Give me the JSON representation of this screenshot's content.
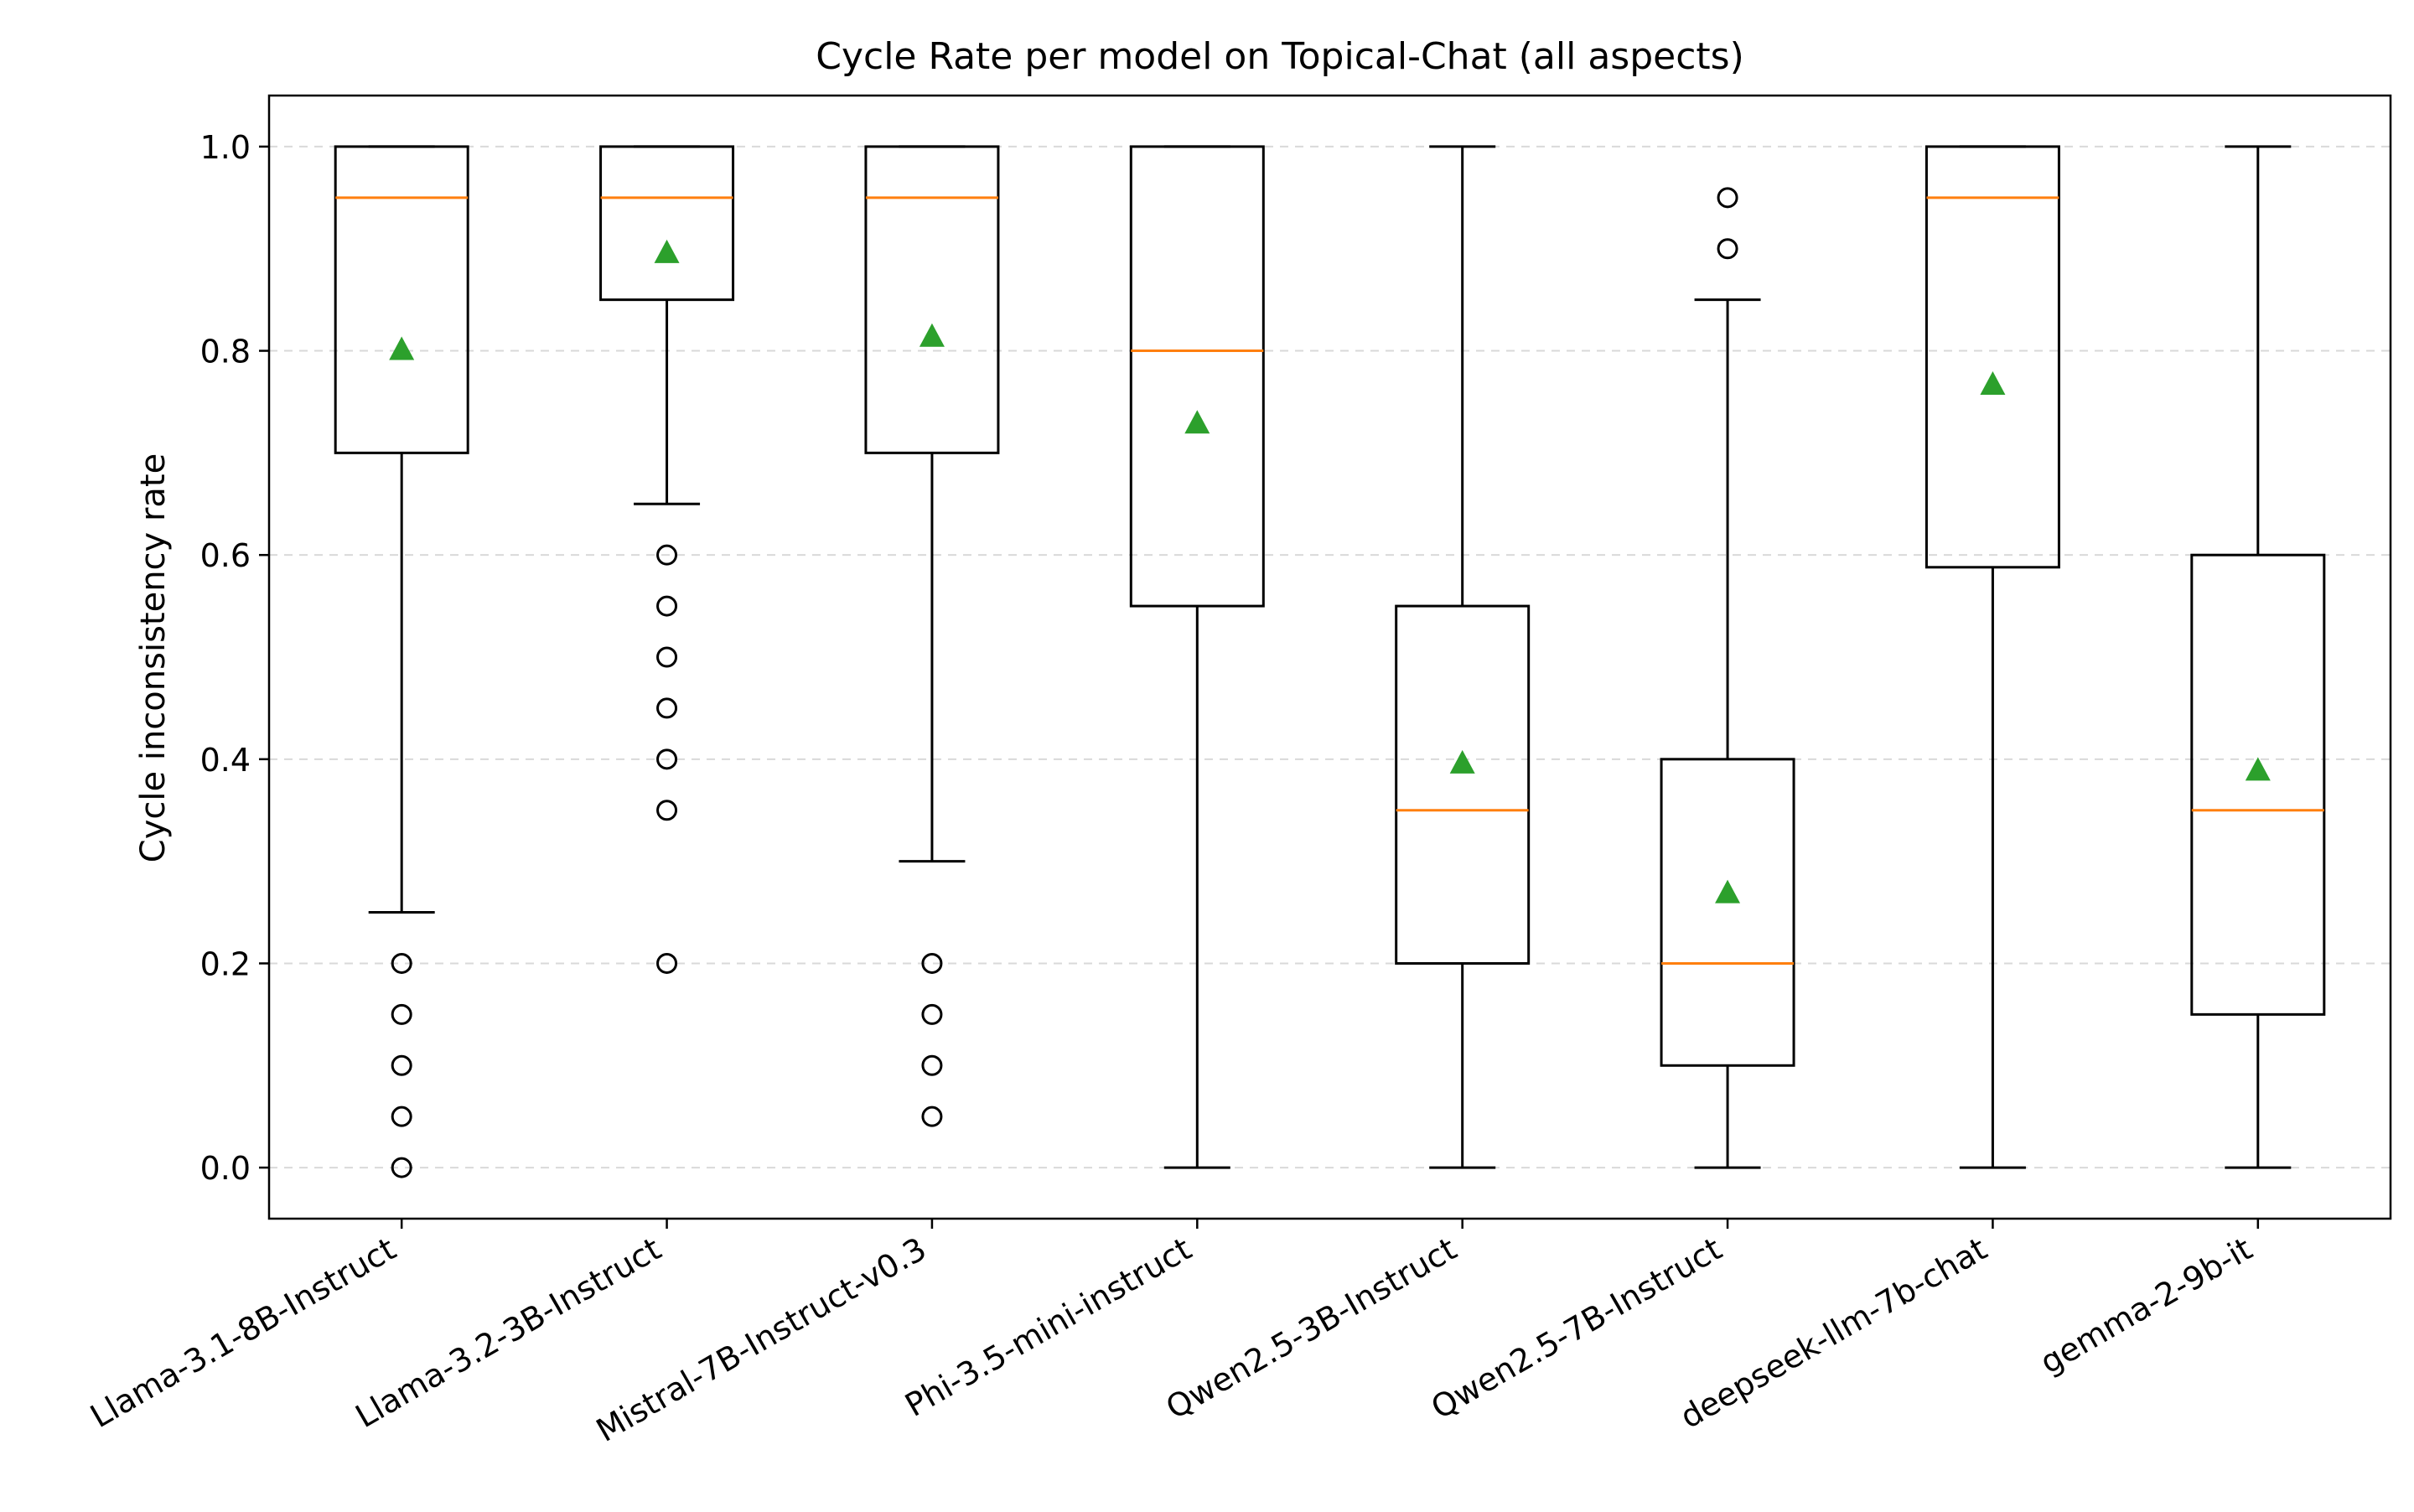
{
  "chart_data": {
    "type": "box",
    "title": "Cycle Rate per model on Topical-Chat (all aspects)",
    "xlabel": "",
    "ylabel": "Cycle inconsistency rate",
    "ylim": [
      -0.05,
      1.05
    ],
    "yticks": [
      0.0,
      0.2,
      0.4,
      0.6,
      0.8,
      1.0
    ],
    "ytick_labels": [
      "0.0",
      "0.2",
      "0.4",
      "0.6",
      "0.8",
      "1.0"
    ],
    "grid": "horizontal dashed",
    "categories": [
      "Llama-3.1-8B-Instruct",
      "Llama-3.2-3B-Instruct",
      "Mistral-7B-Instruct-v0.3",
      "Phi-3.5-mini-instruct",
      "Qwen2.5-3B-Instruct",
      "Qwen2.5-7B-Instruct",
      "deepseek-llm-7b-chat",
      "gemma-2-9b-it"
    ],
    "boxes": [
      {
        "whisker_low": 0.25,
        "q1": 0.7,
        "median": 0.95,
        "q3": 1.0,
        "whisker_high": 1.0,
        "mean": 0.8,
        "outliers": [
          0.2,
          0.15,
          0.1,
          0.05,
          0.0
        ]
      },
      {
        "whisker_low": 0.65,
        "q1": 0.85,
        "median": 0.95,
        "q3": 1.0,
        "whisker_high": 1.0,
        "mean": 0.895,
        "outliers": [
          0.6,
          0.55,
          0.5,
          0.45,
          0.4,
          0.35,
          0.2
        ]
      },
      {
        "whisker_low": 0.3,
        "q1": 0.7,
        "median": 0.95,
        "q3": 1.0,
        "whisker_high": 1.0,
        "mean": 0.813,
        "outliers": [
          0.2,
          0.15,
          0.1,
          0.05
        ]
      },
      {
        "whisker_low": 0.0,
        "q1": 0.55,
        "median": 0.8,
        "q3": 1.0,
        "whisker_high": 1.0,
        "mean": 0.728,
        "outliers": []
      },
      {
        "whisker_low": 0.0,
        "q1": 0.2,
        "median": 0.35,
        "q3": 0.55,
        "whisker_high": 1.0,
        "mean": 0.395,
        "outliers": []
      },
      {
        "whisker_low": 0.0,
        "q1": 0.1,
        "median": 0.2,
        "q3": 0.4,
        "whisker_high": 0.85,
        "mean": 0.268,
        "outliers": [
          0.9,
          0.95
        ]
      },
      {
        "whisker_low": 0.0,
        "q1": 0.588,
        "median": 0.95,
        "q3": 1.0,
        "whisker_high": 1.0,
        "mean": 0.766,
        "outliers": []
      },
      {
        "whisker_low": 0.0,
        "q1": 0.15,
        "median": 0.35,
        "q3": 0.6,
        "whisker_high": 1.0,
        "mean": 0.388,
        "outliers": []
      }
    ],
    "colors": {
      "box": "#000000",
      "median": "#ff7f0e",
      "mean": "#2ca02c",
      "grid": "#d9d9d9"
    }
  }
}
